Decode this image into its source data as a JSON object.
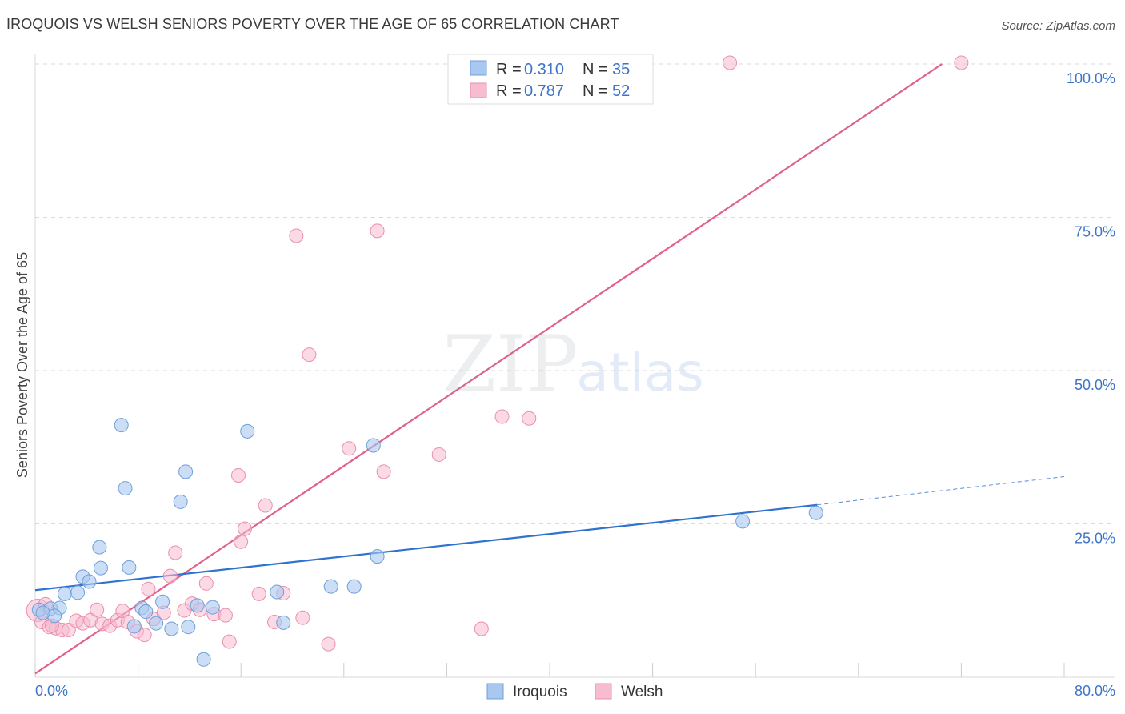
{
  "header": {
    "title": "IROQUOIS VS WELSH SENIORS POVERTY OVER THE AGE OF 65 CORRELATION CHART",
    "source": "Source: ZipAtlas.com"
  },
  "watermark": {
    "zip": "ZIP",
    "atlas": "atlas"
  },
  "colors": {
    "iroquois_fill": "#a9c8f0",
    "iroquois_stroke": "#6f9fd9",
    "iroquois_line": "#2f72cf",
    "welsh_fill": "#f7bcd0",
    "welsh_stroke": "#e98fae",
    "welsh_line": "#e0608e",
    "tick_label": "#3d74c9",
    "grid": "#d9d9d9"
  },
  "legend": {
    "rows": [
      {
        "r_label": "R =",
        "r_value": "0.310",
        "n_label": "N =",
        "n_value": "35"
      },
      {
        "r_label": "R =",
        "r_value": "0.787",
        "n_label": "N =",
        "n_value": "52"
      }
    ]
  },
  "chart_data": {
    "type": "scatter",
    "title": "IROQUOIS VS WELSH SENIORS POVERTY OVER THE AGE OF 65 CORRELATION CHART",
    "xlabel": "",
    "ylabel": "Seniors Poverty Over the Age of 65",
    "xlim": [
      0,
      80
    ],
    "ylim": [
      0,
      100
    ],
    "x_tick_labels": [
      "0.0%",
      "80.0%"
    ],
    "y_tick_labels": [
      "25.0%",
      "50.0%",
      "75.0%",
      "100.0%"
    ],
    "y_ticks": [
      25,
      50,
      75,
      100
    ],
    "grid": true,
    "legend_position": "top-center",
    "series": [
      {
        "name": "Iroquois",
        "r": 0.31,
        "n": 35,
        "trend": {
          "x0": 0,
          "y0": 14.2,
          "x1": 60.8,
          "y1": 28.1,
          "dashed_to_x": 80,
          "dashed_to_y": 32.7
        },
        "points": [
          [
            0.3,
            11.0
          ],
          [
            1.2,
            11.2
          ],
          [
            1.9,
            11.3
          ],
          [
            1.5,
            10.0
          ],
          [
            2.3,
            13.6
          ],
          [
            3.3,
            13.8
          ],
          [
            3.7,
            16.4
          ],
          [
            4.2,
            15.6
          ],
          [
            5.0,
            21.2
          ],
          [
            5.1,
            17.8
          ],
          [
            6.7,
            41.1
          ],
          [
            7.0,
            30.8
          ],
          [
            7.3,
            17.9
          ],
          [
            7.7,
            8.3
          ],
          [
            8.3,
            11.3
          ],
          [
            8.6,
            10.7
          ],
          [
            9.4,
            8.8
          ],
          [
            9.9,
            12.3
          ],
          [
            10.6,
            7.9
          ],
          [
            11.3,
            28.6
          ],
          [
            11.7,
            33.5
          ],
          [
            11.9,
            8.2
          ],
          [
            12.6,
            11.7
          ],
          [
            13.1,
            2.9
          ],
          [
            13.8,
            11.4
          ],
          [
            16.5,
            40.1
          ],
          [
            18.8,
            13.9
          ],
          [
            19.3,
            8.9
          ],
          [
            23.0,
            14.8
          ],
          [
            24.8,
            14.8
          ],
          [
            26.3,
            37.8
          ],
          [
            26.6,
            19.7
          ],
          [
            55.0,
            25.4
          ],
          [
            60.7,
            26.8
          ],
          [
            0.6,
            10.5
          ]
        ]
      },
      {
        "name": "Welsh",
        "r": 0.787,
        "n": 52,
        "trend": {
          "x0": 0,
          "y0": 0.6,
          "x1": 70.5,
          "y1": 100.0
        },
        "points": [
          [
            0.2,
            10.9
          ],
          [
            0.5,
            9.0
          ],
          [
            1.1,
            8.2
          ],
          [
            1.6,
            8.0
          ],
          [
            2.1,
            7.7
          ],
          [
            2.6,
            7.7
          ],
          [
            3.2,
            9.2
          ],
          [
            3.7,
            8.8
          ],
          [
            4.3,
            9.3
          ],
          [
            4.8,
            11.0
          ],
          [
            5.2,
            8.7
          ],
          [
            5.8,
            8.4
          ],
          [
            6.4,
            9.3
          ],
          [
            6.8,
            10.8
          ],
          [
            7.2,
            9.0
          ],
          [
            7.9,
            7.5
          ],
          [
            8.5,
            6.9
          ],
          [
            8.8,
            14.4
          ],
          [
            9.2,
            9.5
          ],
          [
            10.0,
            10.5
          ],
          [
            10.5,
            16.5
          ],
          [
            10.9,
            20.3
          ],
          [
            11.6,
            10.9
          ],
          [
            12.2,
            12.0
          ],
          [
            12.8,
            11.0
          ],
          [
            13.3,
            15.3
          ],
          [
            13.9,
            10.3
          ],
          [
            14.8,
            10.1
          ],
          [
            15.1,
            5.8
          ],
          [
            15.8,
            32.9
          ],
          [
            16.0,
            22.1
          ],
          [
            16.3,
            24.2
          ],
          [
            17.4,
            13.6
          ],
          [
            17.9,
            28.0
          ],
          [
            18.6,
            9.0
          ],
          [
            19.3,
            13.7
          ],
          [
            20.3,
            72.0
          ],
          [
            20.8,
            9.7
          ],
          [
            21.3,
            52.6
          ],
          [
            22.8,
            5.4
          ],
          [
            24.4,
            37.3
          ],
          [
            26.6,
            72.8
          ],
          [
            27.1,
            33.5
          ],
          [
            31.4,
            36.3
          ],
          [
            33.4,
            100.2
          ],
          [
            34.7,
            7.9
          ],
          [
            36.3,
            42.5
          ],
          [
            38.4,
            42.2
          ],
          [
            54.0,
            100.2
          ],
          [
            72.0,
            100.2
          ],
          [
            0.8,
            11.9
          ],
          [
            1.3,
            8.4
          ]
        ]
      }
    ]
  },
  "bottom_legend": {
    "items": [
      {
        "label": "Iroquois"
      },
      {
        "label": "Welsh"
      }
    ]
  }
}
